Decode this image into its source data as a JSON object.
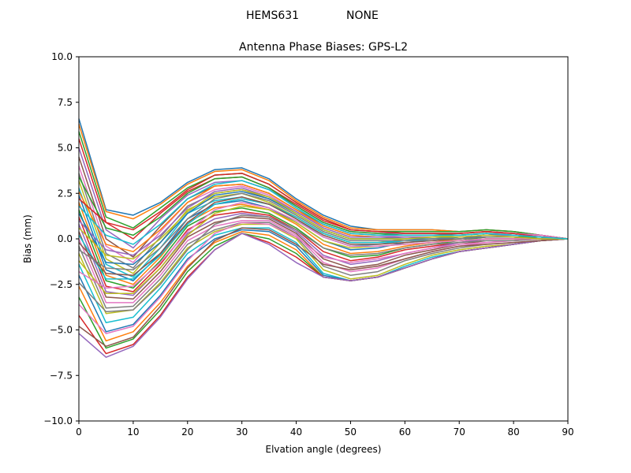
{
  "figure": {
    "suptitle_left": "HEMS631",
    "suptitle_right": "NONE"
  },
  "colors": {
    "axes": "#000000",
    "background": "#ffffff",
    "palette": [
      "#1f77b4",
      "#ff7f0e",
      "#2ca02c",
      "#d62728",
      "#9467bd",
      "#8c564b",
      "#e377c2",
      "#7f7f7f",
      "#bcbd22",
      "#17becf"
    ]
  },
  "chart_data": {
    "type": "line",
    "title": "Antenna Phase Biases: GPS-L2",
    "xlabel": "Elvation angle (degrees)",
    "ylabel": "Bias (mm)",
    "xlim": [
      0,
      90
    ],
    "ylim": [
      -10,
      10
    ],
    "xticks": [
      0,
      10,
      20,
      30,
      40,
      50,
      60,
      70,
      80,
      90
    ],
    "yticks": [
      -10.0,
      -7.5,
      -5.0,
      -2.5,
      0.0,
      2.5,
      5.0,
      7.5,
      10.0
    ],
    "ytick_labels": [
      "−10.0",
      "−7.5",
      "−5.0",
      "−2.5",
      "0.0",
      "2.5",
      "5.0",
      "7.5",
      "10.0"
    ],
    "grid": false,
    "legend": "none",
    "x": [
      0,
      5,
      10,
      15,
      20,
      25,
      30,
      35,
      40,
      45,
      50,
      55,
      60,
      65,
      70,
      75,
      80,
      85,
      90
    ],
    "series": [
      {
        "values": [
          6.6,
          1.6,
          1.3,
          2.0,
          3.1,
          3.8,
          3.9,
          3.3,
          2.2,
          1.3,
          0.7,
          0.5,
          0.5,
          0.5,
          0.4,
          0.5,
          0.4,
          0.2,
          0.0
        ]
      },
      {
        "values": [
          6.3,
          1.5,
          1.1,
          1.9,
          3.0,
          3.7,
          3.8,
          3.2,
          2.1,
          1.2,
          0.6,
          0.5,
          0.5,
          0.5,
          0.4,
          0.5,
          0.4,
          0.2,
          0.0
        ]
      },
      {
        "values": [
          5.9,
          1.2,
          0.6,
          1.7,
          2.8,
          3.5,
          3.6,
          3.0,
          2.0,
          1.1,
          0.5,
          0.4,
          0.4,
          0.4,
          0.4,
          0.5,
          0.4,
          0.2,
          0.0
        ]
      },
      {
        "values": [
          5.5,
          0.9,
          0.0,
          1.4,
          2.6,
          3.3,
          3.4,
          2.8,
          1.9,
          1.0,
          0.5,
          0.4,
          0.3,
          0.3,
          0.3,
          0.4,
          0.3,
          0.2,
          0.0
        ]
      },
      {
        "values": [
          5.0,
          0.5,
          -0.5,
          1.1,
          2.4,
          3.1,
          3.2,
          2.7,
          1.8,
          0.9,
          0.4,
          0.3,
          0.3,
          0.3,
          0.3,
          0.4,
          0.3,
          0.2,
          0.0
        ]
      },
      {
        "values": [
          4.5,
          0.0,
          -1.0,
          0.7,
          2.2,
          2.9,
          3.0,
          2.5,
          1.6,
          0.8,
          0.3,
          0.2,
          0.2,
          0.2,
          0.3,
          0.4,
          0.3,
          0.2,
          0.0
        ]
      },
      {
        "values": [
          4.0,
          -0.4,
          -1.3,
          0.4,
          2.0,
          2.7,
          2.9,
          2.4,
          1.5,
          0.7,
          0.2,
          0.1,
          0.2,
          0.2,
          0.2,
          0.3,
          0.3,
          0.2,
          0.0
        ]
      },
      {
        "values": [
          3.6,
          -0.8,
          -1.6,
          0.1,
          1.8,
          2.5,
          2.7,
          2.2,
          1.4,
          0.5,
          0.0,
          0.0,
          0.1,
          0.1,
          0.2,
          0.3,
          0.2,
          0.1,
          0.0
        ]
      },
      {
        "values": [
          3.2,
          -1.1,
          -1.9,
          -0.2,
          1.6,
          2.3,
          2.5,
          2.0,
          1.2,
          0.3,
          -0.2,
          -0.2,
          0.0,
          0.1,
          0.2,
          0.3,
          0.2,
          0.1,
          0.0
        ]
      },
      {
        "values": [
          2.8,
          -1.4,
          -2.1,
          -0.5,
          1.4,
          2.1,
          2.3,
          1.9,
          1.1,
          0.1,
          -0.4,
          -0.3,
          -0.1,
          0.0,
          0.1,
          0.2,
          0.2,
          0.1,
          0.0
        ]
      },
      {
        "values": [
          2.4,
          -1.7,
          -2.3,
          -0.8,
          1.1,
          1.9,
          2.1,
          1.7,
          0.9,
          -0.1,
          -0.6,
          -0.5,
          -0.2,
          -0.1,
          0.1,
          0.2,
          0.2,
          0.1,
          0.0
        ]
      },
      {
        "values": [
          2.0,
          -2.0,
          -2.5,
          -1.0,
          0.9,
          1.7,
          1.9,
          1.6,
          0.8,
          -0.3,
          -0.8,
          -0.7,
          -0.4,
          -0.2,
          0.0,
          0.1,
          0.1,
          0.1,
          0.0
        ]
      },
      {
        "values": [
          1.6,
          -2.3,
          -2.7,
          -1.2,
          0.7,
          1.5,
          1.7,
          1.4,
          0.6,
          -0.5,
          -1.0,
          -0.9,
          -0.5,
          -0.3,
          -0.1,
          0.1,
          0.1,
          0.1,
          0.0
        ]
      },
      {
        "values": [
          1.2,
          -2.6,
          -2.9,
          -1.4,
          0.5,
          1.3,
          1.5,
          1.3,
          0.5,
          -0.7,
          -1.2,
          -1.0,
          -0.6,
          -0.4,
          -0.2,
          0.0,
          0.0,
          0.0,
          0.0
        ]
      },
      {
        "values": [
          0.8,
          -2.9,
          -3.1,
          -1.6,
          0.3,
          1.1,
          1.4,
          1.2,
          0.4,
          -0.9,
          -1.4,
          -1.2,
          -0.8,
          -0.5,
          -0.2,
          0.0,
          0.0,
          0.0,
          0.0
        ]
      },
      {
        "values": [
          0.4,
          -3.2,
          -3.3,
          -1.8,
          0.1,
          0.9,
          1.2,
          1.1,
          0.3,
          -1.1,
          -1.6,
          -1.4,
          -0.9,
          -0.6,
          -0.3,
          -0.1,
          -0.1,
          0.0,
          0.0
        ]
      },
      {
        "values": [
          0.0,
          -3.5,
          -3.5,
          -2.0,
          -0.1,
          0.7,
          1.0,
          1.0,
          0.2,
          -1.3,
          -1.8,
          -1.6,
          -1.1,
          -0.7,
          -0.4,
          -0.2,
          -0.1,
          0.0,
          0.0
        ]
      },
      {
        "values": [
          -0.4,
          -3.8,
          -3.7,
          -2.2,
          -0.3,
          0.5,
          0.9,
          0.9,
          0.1,
          -1.5,
          -2.0,
          -1.8,
          -1.2,
          -0.8,
          -0.5,
          -0.3,
          -0.2,
          -0.1,
          0.0
        ]
      },
      {
        "values": [
          -0.8,
          -4.1,
          -3.9,
          -2.4,
          -0.5,
          0.4,
          0.8,
          0.8,
          0.0,
          -1.7,
          -2.2,
          -2.0,
          -1.4,
          -0.9,
          -0.6,
          -0.4,
          -0.3,
          -0.1,
          0.0
        ]
      },
      {
        "values": [
          -1.4,
          -4.6,
          -4.3,
          -2.7,
          -0.8,
          0.2,
          0.6,
          0.6,
          -0.2,
          -1.9,
          -2.3,
          -2.1,
          -1.5,
          -1.0,
          -0.7,
          -0.5,
          -0.3,
          -0.1,
          0.0
        ]
      },
      {
        "values": [
          -2.0,
          -5.1,
          -4.7,
          -3.1,
          -1.1,
          0.0,
          0.5,
          0.4,
          -0.4,
          -2.0,
          -2.3,
          -2.1,
          -1.6,
          -1.1,
          -0.7,
          -0.5,
          -0.3,
          -0.1,
          0.0
        ]
      },
      {
        "values": [
          -2.6,
          -5.6,
          -5.1,
          -3.5,
          -1.5,
          -0.2,
          0.4,
          0.2,
          -0.6,
          -2.1,
          -2.3,
          -2.1,
          -1.6,
          -1.1,
          -0.7,
          -0.5,
          -0.3,
          -0.1,
          0.0
        ]
      },
      {
        "values": [
          -3.2,
          -6.0,
          -5.5,
          -3.9,
          -1.8,
          -0.4,
          0.3,
          0.0,
          -0.8,
          -2.1,
          -2.3,
          -2.1,
          -1.6,
          -1.1,
          -0.7,
          -0.5,
          -0.3,
          -0.1,
          0.0
        ]
      },
      {
        "values": [
          -4.2,
          -6.3,
          -5.8,
          -4.2,
          -2.1,
          -0.6,
          0.3,
          -0.2,
          -1.0,
          -2.1,
          -2.3,
          -2.1,
          -1.6,
          -1.1,
          -0.7,
          -0.5,
          -0.3,
          -0.1,
          0.0
        ]
      },
      {
        "values": [
          -5.2,
          -6.5,
          -5.9,
          -4.3,
          -2.2,
          -0.6,
          0.3,
          -0.3,
          -1.3,
          -2.1,
          -2.3,
          -2.1,
          -1.6,
          -1.1,
          -0.7,
          -0.5,
          -0.3,
          -0.1,
          0.0
        ]
      },
      {
        "values": [
          -4.8,
          -5.9,
          -5.4,
          -3.7,
          -1.6,
          -0.1,
          0.6,
          0.5,
          -0.3,
          -1.4,
          -1.7,
          -1.5,
          -1.1,
          -0.7,
          -0.4,
          -0.3,
          -0.2,
          -0.1,
          0.0
        ]
      },
      {
        "values": [
          -3.6,
          -5.2,
          -4.8,
          -3.2,
          -1.2,
          0.3,
          0.9,
          0.8,
          0.1,
          -1.0,
          -1.3,
          -1.1,
          -0.8,
          -0.5,
          -0.3,
          -0.2,
          -0.1,
          0.0,
          0.0
        ]
      },
      {
        "values": [
          -2.4,
          -4.0,
          -3.9,
          -2.5,
          -0.6,
          0.8,
          1.3,
          1.2,
          0.5,
          -0.5,
          -0.9,
          -0.8,
          -0.5,
          -0.3,
          -0.2,
          -0.1,
          -0.1,
          0.0,
          0.0
        ]
      },
      {
        "values": [
          -1.2,
          -3.0,
          -3.0,
          -1.6,
          0.2,
          1.4,
          1.8,
          1.6,
          0.9,
          -0.1,
          -0.5,
          -0.4,
          -0.3,
          -0.2,
          -0.1,
          0.0,
          0.0,
          0.0,
          0.0
        ]
      },
      {
        "values": [
          0.2,
          -2.2,
          -2.2,
          -0.9,
          0.8,
          1.9,
          2.2,
          1.9,
          1.2,
          0.3,
          -0.2,
          -0.2,
          -0.1,
          -0.1,
          0.0,
          0.1,
          0.1,
          0.0,
          0.0
        ]
      },
      {
        "values": [
          1.4,
          -1.3,
          -1.4,
          -0.2,
          1.4,
          2.4,
          2.6,
          2.2,
          1.4,
          0.5,
          0.0,
          0.0,
          0.0,
          0.0,
          0.1,
          0.1,
          0.1,
          0.0,
          0.0
        ]
      },
      {
        "values": [
          2.6,
          -0.3,
          -0.7,
          0.5,
          2.0,
          2.9,
          3.0,
          2.5,
          1.6,
          0.7,
          0.2,
          0.1,
          0.1,
          0.1,
          0.1,
          0.2,
          0.2,
          0.1,
          0.0
        ]
      },
      {
        "values": [
          3.4,
          0.6,
          0.2,
          1.2,
          2.5,
          3.3,
          3.4,
          2.8,
          1.8,
          0.9,
          0.4,
          0.3,
          0.2,
          0.2,
          0.2,
          0.3,
          0.2,
          0.1,
          0.0
        ]
      },
      {
        "values": [
          2.2,
          0.9,
          0.5,
          1.5,
          2.7,
          3.5,
          3.6,
          3.0,
          2.0,
          1.1,
          0.5,
          0.4,
          0.3,
          0.3,
          0.3,
          0.4,
          0.3,
          0.1,
          0.0
        ]
      },
      {
        "values": [
          1.0,
          -0.6,
          -0.9,
          0.2,
          1.7,
          2.6,
          2.8,
          2.3,
          1.5,
          0.6,
          0.1,
          0.1,
          0.1,
          0.1,
          0.1,
          0.2,
          0.2,
          0.1,
          0.0
        ]
      },
      {
        "values": [
          -0.2,
          -1.9,
          -2.0,
          -0.8,
          0.9,
          2.0,
          2.3,
          1.9,
          1.1,
          0.2,
          -0.3,
          -0.3,
          -0.2,
          -0.1,
          0.0,
          0.1,
          0.1,
          0.0,
          0.0
        ]
      },
      {
        "values": [
          -1.8,
          -2.7,
          -2.6,
          -1.3,
          0.4,
          1.6,
          2.0,
          1.7,
          1.0,
          0.1,
          -0.4,
          -0.4,
          -0.3,
          -0.2,
          -0.1,
          0.0,
          0.0,
          0.0,
          0.0
        ]
      },
      {
        "values": [
          -0.6,
          -1.6,
          -1.7,
          -0.5,
          1.1,
          2.2,
          2.5,
          2.1,
          1.3,
          0.4,
          -0.1,
          -0.1,
          -0.1,
          0.0,
          0.0,
          0.1,
          0.1,
          0.0,
          0.0
        ]
      },
      {
        "values": [
          0.6,
          -0.9,
          -1.1,
          0.0,
          1.5,
          2.5,
          2.7,
          2.3,
          1.4,
          0.5,
          0.0,
          0.0,
          0.0,
          0.1,
          0.1,
          0.2,
          0.1,
          0.0,
          0.0
        ]
      },
      {
        "values": [
          1.8,
          0.2,
          -0.3,
          0.8,
          2.2,
          3.0,
          3.2,
          2.7,
          1.7,
          0.8,
          0.3,
          0.2,
          0.2,
          0.2,
          0.2,
          0.3,
          0.2,
          0.1,
          0.0
        ]
      }
    ]
  }
}
